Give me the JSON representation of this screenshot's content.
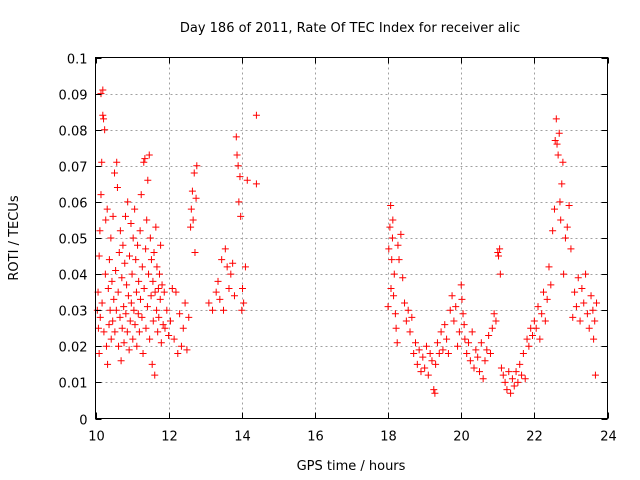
{
  "chart_data": {
    "type": "scatter",
    "title": "Day 186 of 2011, Rate Of TEC Index for receiver alic",
    "xlabel": "GPS time / hours",
    "ylabel": "ROTI / TECUs",
    "xlim": [
      10,
      24
    ],
    "ylim": [
      0,
      0.1
    ],
    "x_ticks": [
      10,
      12,
      14,
      16,
      18,
      20,
      22,
      24
    ],
    "x_tick_labels": [
      "10",
      "12",
      "14",
      "16",
      "18",
      "20",
      "22",
      "24"
    ],
    "y_ticks": [
      0,
      0.01,
      0.02,
      0.03,
      0.04,
      0.05,
      0.06,
      0.07,
      0.08,
      0.09,
      0.1
    ],
    "y_tick_labels": [
      "0",
      "0.01",
      "0.02",
      "0.03",
      "0.04",
      "0.05",
      "0.06",
      "0.07",
      "0.08",
      "0.09",
      "0.1"
    ],
    "grid": true,
    "marker": "plus",
    "color": "#ff0000",
    "series": [
      {
        "name": "ROTI",
        "points": [
          [
            10.05,
            0.03
          ],
          [
            10.07,
            0.035
          ],
          [
            10.08,
            0.025
          ],
          [
            10.1,
            0.045
          ],
          [
            10.1,
            0.018
          ],
          [
            10.12,
            0.052
          ],
          [
            10.13,
            0.028
          ],
          [
            10.15,
            0.062
          ],
          [
            10.15,
            0.09
          ],
          [
            10.17,
            0.071
          ],
          [
            10.18,
            0.032
          ],
          [
            10.2,
            0.091
          ],
          [
            10.2,
            0.084
          ],
          [
            10.22,
            0.083
          ],
          [
            10.23,
            0.024
          ],
          [
            10.25,
            0.08
          ],
          [
            10.27,
            0.04
          ],
          [
            10.28,
            0.055
          ],
          [
            10.3,
            0.02
          ],
          [
            10.32,
            0.058
          ],
          [
            10.33,
            0.015
          ],
          [
            10.35,
            0.036
          ],
          [
            10.37,
            0.026
          ],
          [
            10.38,
            0.044
          ],
          [
            10.4,
            0.03
          ],
          [
            10.42,
            0.05
          ],
          [
            10.43,
            0.022
          ],
          [
            10.45,
            0.038
          ],
          [
            10.47,
            0.027
          ],
          [
            10.48,
            0.056
          ],
          [
            10.5,
            0.033
          ],
          [
            10.52,
            0.068
          ],
          [
            10.53,
            0.024
          ],
          [
            10.55,
            0.041
          ],
          [
            10.57,
            0.03
          ],
          [
            10.58,
            0.071
          ],
          [
            10.6,
            0.064
          ],
          [
            10.62,
            0.035
          ],
          [
            10.63,
            0.02
          ],
          [
            10.65,
            0.046
          ],
          [
            10.67,
            0.028
          ],
          [
            10.68,
            0.052
          ],
          [
            10.7,
            0.016
          ],
          [
            10.72,
            0.039
          ],
          [
            10.73,
            0.025
          ],
          [
            10.75,
            0.048
          ],
          [
            10.77,
            0.031
          ],
          [
            10.78,
            0.021
          ],
          [
            10.8,
            0.043
          ],
          [
            10.82,
            0.056
          ],
          [
            10.83,
            0.029
          ],
          [
            10.85,
            0.037
          ],
          [
            10.87,
            0.024
          ],
          [
            10.88,
            0.06
          ],
          [
            10.9,
            0.034
          ],
          [
            10.92,
            0.019
          ],
          [
            10.93,
            0.045
          ],
          [
            10.95,
            0.027
          ],
          [
            10.97,
            0.054
          ],
          [
            10.98,
            0.032
          ],
          [
            11.0,
            0.04
          ],
          [
            11.02,
            0.022
          ],
          [
            11.03,
            0.05
          ],
          [
            11.05,
            0.03
          ],
          [
            11.07,
            0.058
          ],
          [
            11.08,
            0.026
          ],
          [
            11.1,
            0.044
          ],
          [
            11.12,
            0.035
          ],
          [
            11.13,
            0.02
          ],
          [
            11.15,
            0.048
          ],
          [
            11.17,
            0.029
          ],
          [
            11.18,
            0.038
          ],
          [
            11.2,
            0.024
          ],
          [
            11.22,
            0.052
          ],
          [
            11.23,
            0.033
          ],
          [
            11.25,
            0.062
          ],
          [
            11.27,
            0.028
          ],
          [
            11.28,
            0.042
          ],
          [
            11.3,
            0.018
          ],
          [
            11.32,
            0.071
          ],
          [
            11.33,
            0.036
          ],
          [
            11.35,
            0.072
          ],
          [
            11.37,
            0.047
          ],
          [
            11.38,
            0.025
          ],
          [
            11.4,
            0.055
          ],
          [
            11.42,
            0.031
          ],
          [
            11.43,
            0.066
          ],
          [
            11.45,
            0.04
          ],
          [
            11.47,
            0.073
          ],
          [
            11.48,
            0.022
          ],
          [
            11.5,
            0.05
          ],
          [
            11.52,
            0.034
          ],
          [
            11.53,
            0.044
          ],
          [
            11.55,
            0.015
          ],
          [
            11.57,
            0.038
          ],
          [
            11.58,
            0.027
          ],
          [
            11.6,
            0.046
          ],
          [
            11.62,
            0.012
          ],
          [
            11.63,
            0.035
          ],
          [
            11.65,
            0.053
          ],
          [
            11.67,
            0.03
          ],
          [
            11.68,
            0.042
          ],
          [
            11.7,
            0.024
          ],
          [
            11.72,
            0.036
          ],
          [
            11.73,
            0.028
          ],
          [
            11.75,
            0.04
          ],
          [
            11.77,
            0.033
          ],
          [
            11.78,
            0.048
          ],
          [
            11.8,
            0.021
          ],
          [
            11.82,
            0.037
          ],
          [
            11.85,
            0.026
          ],
          [
            11.88,
            0.035
          ],
          [
            11.9,
            0.025
          ],
          [
            11.95,
            0.03
          ],
          [
            12.0,
            0.023
          ],
          [
            12.05,
            0.027
          ],
          [
            12.1,
            0.036
          ],
          [
            12.15,
            0.022
          ],
          [
            12.2,
            0.035
          ],
          [
            12.25,
            0.018
          ],
          [
            12.3,
            0.029
          ],
          [
            12.35,
            0.02
          ],
          [
            12.4,
            0.025
          ],
          [
            12.45,
            0.032
          ],
          [
            12.5,
            0.019
          ],
          [
            12.55,
            0.028
          ],
          [
            12.6,
            0.053
          ],
          [
            12.62,
            0.058
          ],
          [
            12.65,
            0.063
          ],
          [
            12.67,
            0.055
          ],
          [
            12.7,
            0.068
          ],
          [
            12.72,
            0.046
          ],
          [
            12.75,
            0.061
          ],
          [
            12.77,
            0.07
          ],
          [
            13.1,
            0.032
          ],
          [
            13.2,
            0.03
          ],
          [
            13.3,
            0.035
          ],
          [
            13.35,
            0.038
          ],
          [
            13.4,
            0.033
          ],
          [
            13.45,
            0.044
          ],
          [
            13.5,
            0.03
          ],
          [
            13.55,
            0.047
          ],
          [
            13.6,
            0.042
          ],
          [
            13.65,
            0.036
          ],
          [
            13.7,
            0.04
          ],
          [
            13.75,
            0.043
          ],
          [
            13.8,
            0.034
          ],
          [
            13.85,
            0.078
          ],
          [
            13.87,
            0.073
          ],
          [
            13.9,
            0.07
          ],
          [
            13.92,
            0.06
          ],
          [
            13.95,
            0.067
          ],
          [
            13.97,
            0.056
          ],
          [
            14.0,
            0.03
          ],
          [
            14.02,
            0.036
          ],
          [
            14.05,
            0.032
          ],
          [
            14.1,
            0.042
          ],
          [
            14.15,
            0.066
          ],
          [
            14.4,
            0.084
          ],
          [
            14.4,
            0.065
          ],
          [
            18.0,
            0.031
          ],
          [
            18.02,
            0.047
          ],
          [
            18.05,
            0.053
          ],
          [
            18.07,
            0.059
          ],
          [
            18.08,
            0.036
          ],
          [
            18.1,
            0.044
          ],
          [
            18.12,
            0.05
          ],
          [
            18.13,
            0.055
          ],
          [
            18.15,
            0.034
          ],
          [
            18.17,
            0.04
          ],
          [
            18.2,
            0.029
          ],
          [
            18.22,
            0.025
          ],
          [
            18.25,
            0.021
          ],
          [
            18.27,
            0.048
          ],
          [
            18.3,
            0.044
          ],
          [
            18.35,
            0.051
          ],
          [
            18.4,
            0.039
          ],
          [
            18.45,
            0.032
          ],
          [
            18.5,
            0.027
          ],
          [
            18.55,
            0.03
          ],
          [
            18.6,
            0.024
          ],
          [
            18.65,
            0.028
          ],
          [
            18.7,
            0.018
          ],
          [
            18.75,
            0.021
          ],
          [
            18.8,
            0.015
          ],
          [
            18.85,
            0.019
          ],
          [
            18.9,
            0.013
          ],
          [
            18.95,
            0.017
          ],
          [
            19.0,
            0.014
          ],
          [
            19.05,
            0.02
          ],
          [
            19.1,
            0.012
          ],
          [
            19.15,
            0.018
          ],
          [
            19.2,
            0.016
          ],
          [
            19.25,
            0.008
          ],
          [
            19.28,
            0.007
          ],
          [
            19.3,
            0.015
          ],
          [
            19.35,
            0.021
          ],
          [
            19.4,
            0.018
          ],
          [
            19.45,
            0.024
          ],
          [
            19.5,
            0.019
          ],
          [
            19.55,
            0.026
          ],
          [
            19.6,
            0.022
          ],
          [
            19.65,
            0.018
          ],
          [
            19.7,
            0.03
          ],
          [
            19.75,
            0.034
          ],
          [
            19.8,
            0.027
          ],
          [
            19.85,
            0.031
          ],
          [
            19.9,
            0.02
          ],
          [
            19.95,
            0.024
          ],
          [
            20.0,
            0.037
          ],
          [
            20.02,
            0.033
          ],
          [
            20.05,
            0.029
          ],
          [
            20.08,
            0.026
          ],
          [
            20.1,
            0.022
          ],
          [
            20.15,
            0.018
          ],
          [
            20.2,
            0.021
          ],
          [
            20.25,
            0.016
          ],
          [
            20.3,
            0.024
          ],
          [
            20.35,
            0.014
          ],
          [
            20.4,
            0.019
          ],
          [
            20.45,
            0.017
          ],
          [
            20.5,
            0.013
          ],
          [
            20.55,
            0.021
          ],
          [
            20.6,
            0.011
          ],
          [
            20.65,
            0.016
          ],
          [
            20.7,
            0.019
          ],
          [
            20.75,
            0.023
          ],
          [
            20.8,
            0.018
          ],
          [
            20.85,
            0.025
          ],
          [
            20.9,
            0.029
          ],
          [
            20.95,
            0.027
          ],
          [
            21.0,
            0.046
          ],
          [
            21.02,
            0.045
          ],
          [
            21.05,
            0.047
          ],
          [
            21.07,
            0.04
          ],
          [
            21.1,
            0.014
          ],
          [
            21.15,
            0.012
          ],
          [
            21.2,
            0.01
          ],
          [
            21.25,
            0.008
          ],
          [
            21.3,
            0.013
          ],
          [
            21.35,
            0.007
          ],
          [
            21.4,
            0.011
          ],
          [
            21.45,
            0.009
          ],
          [
            21.5,
            0.013
          ],
          [
            21.55,
            0.01
          ],
          [
            21.6,
            0.015
          ],
          [
            21.65,
            0.012
          ],
          [
            21.7,
            0.018
          ],
          [
            21.75,
            0.011
          ],
          [
            21.8,
            0.022
          ],
          [
            21.85,
            0.02
          ],
          [
            21.9,
            0.025
          ],
          [
            21.95,
            0.023
          ],
          [
            22.0,
            0.027
          ],
          [
            22.05,
            0.025
          ],
          [
            22.1,
            0.031
          ],
          [
            22.15,
            0.022
          ],
          [
            22.2,
            0.029
          ],
          [
            22.25,
            0.035
          ],
          [
            22.3,
            0.027
          ],
          [
            22.35,
            0.033
          ],
          [
            22.4,
            0.042
          ],
          [
            22.45,
            0.037
          ],
          [
            22.5,
            0.052
          ],
          [
            22.55,
            0.058
          ],
          [
            22.57,
            0.077
          ],
          [
            22.6,
            0.083
          ],
          [
            22.62,
            0.076
          ],
          [
            22.65,
            0.073
          ],
          [
            22.68,
            0.079
          ],
          [
            22.7,
            0.06
          ],
          [
            22.72,
            0.055
          ],
          [
            22.75,
            0.065
          ],
          [
            22.78,
            0.071
          ],
          [
            22.8,
            0.04
          ],
          [
            22.85,
            0.05
          ],
          [
            22.9,
            0.053
          ],
          [
            22.95,
            0.059
          ],
          [
            23.0,
            0.047
          ],
          [
            23.05,
            0.028
          ],
          [
            23.1,
            0.035
          ],
          [
            23.15,
            0.031
          ],
          [
            23.2,
            0.039
          ],
          [
            23.25,
            0.027
          ],
          [
            23.3,
            0.036
          ],
          [
            23.35,
            0.032
          ],
          [
            23.4,
            0.04
          ],
          [
            23.45,
            0.029
          ],
          [
            23.5,
            0.025
          ],
          [
            23.55,
            0.034
          ],
          [
            23.6,
            0.03
          ],
          [
            23.62,
            0.022
          ],
          [
            23.65,
            0.027
          ],
          [
            23.67,
            0.012
          ],
          [
            23.7,
            0.032
          ]
        ]
      }
    ]
  }
}
